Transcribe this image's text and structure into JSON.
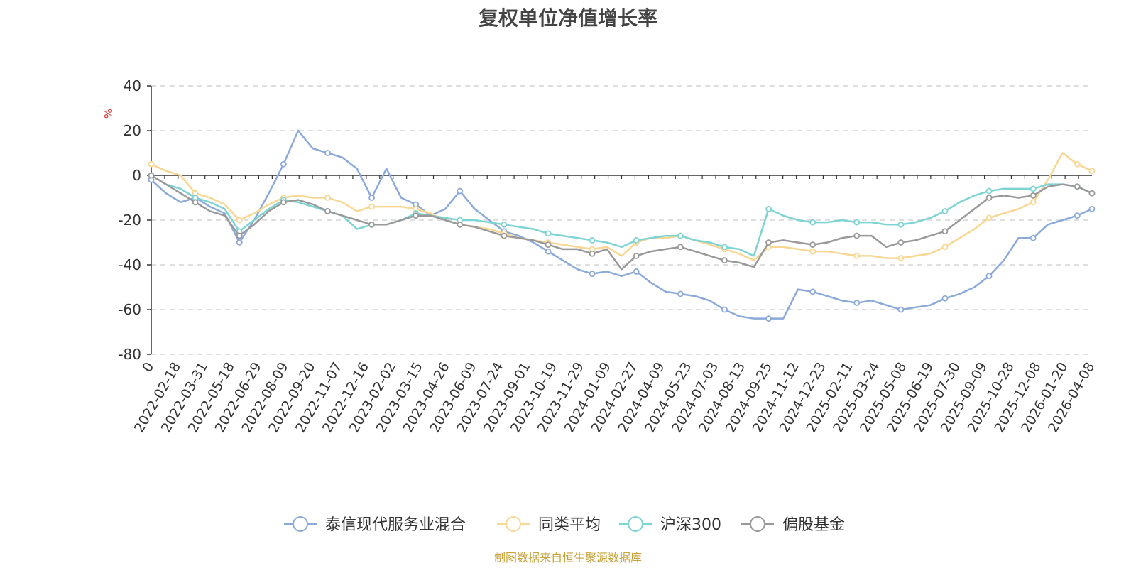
{
  "chart_data": {
    "type": "line",
    "title": "复权单位净值增长率",
    "ylabel": "%",
    "ylim": [
      -80,
      40
    ],
    "yticks": [
      40,
      20,
      0,
      -20,
      -40,
      -60,
      -80
    ],
    "xticks": [
      "0",
      "2022-02-18",
      "2022-03-31",
      "2022-05-18",
      "2022-06-29",
      "2022-08-09",
      "2022-09-20",
      "2022-11-07",
      "2022-12-16",
      "2023-02-02",
      "2023-03-15",
      "2023-04-26",
      "2023-06-09",
      "2023-07-24",
      "2023-09-01",
      "2023-10-19",
      "2023-11-29",
      "2024-01-09",
      "2024-02-27",
      "2024-04-09",
      "2024-05-23",
      "2024-07-03",
      "2024-08-13",
      "2024-09-25",
      "2024-11-12",
      "2024-12-23",
      "2025-02-11",
      "2025-03-24",
      "2025-05-08",
      "2025-06-19",
      "2025-07-30",
      "2025-09-09",
      "2025-10-28",
      "2025-12-08",
      "2026-01-20",
      "2026-04-08"
    ],
    "grid": true,
    "legend_position": "bottom",
    "series": [
      {
        "name": "泰信现代服务业混合",
        "color": "#8caad9",
        "values": [
          -2,
          -8,
          -12,
          -10,
          -14,
          -17,
          -30,
          -20,
          -8,
          5,
          20,
          12,
          10,
          8,
          3,
          -10,
          3,
          -10,
          -13,
          -18,
          -15,
          -7,
          -15,
          -20,
          -25,
          -27,
          -30,
          -34,
          -38,
          -42,
          -44,
          -43,
          -45,
          -43,
          -48,
          -52,
          -53,
          -54,
          -56,
          -60,
          -63,
          -64,
          -64,
          -64,
          -51,
          -52,
          -54,
          -56,
          -57,
          -56,
          -58,
          -60,
          -59,
          -58,
          -55,
          -53,
          -50,
          -45,
          -38,
          -28,
          -28,
          -22,
          -20,
          -18,
          -15
        ]
      },
      {
        "name": "同类平均",
        "color": "#f8d693",
        "values": [
          5,
          2,
          0,
          -8,
          -10,
          -13,
          -20,
          -17,
          -13,
          -10,
          -9,
          -10,
          -10,
          -12,
          -16,
          -14,
          -14,
          -14,
          -15,
          -17,
          -20,
          -22,
          -23,
          -24,
          -26,
          -28,
          -29,
          -30,
          -31,
          -32,
          -33,
          -32,
          -36,
          -30,
          -28,
          -28,
          -27,
          -29,
          -31,
          -33,
          -35,
          -38,
          -32,
          -32,
          -33,
          -34,
          -34,
          -35,
          -36,
          -36,
          -37,
          -37,
          -36,
          -35,
          -32,
          -28,
          -24,
          -19,
          -17,
          -15,
          -12,
          -2,
          10,
          5,
          2
        ]
      },
      {
        "name": "沪深300",
        "color": "#7ed3d3",
        "values": [
          0,
          -4,
          -6,
          -10,
          -12,
          -15,
          -25,
          -20,
          -15,
          -11,
          -12,
          -14,
          -16,
          -18,
          -24,
          -22,
          -22,
          -20,
          -17,
          -18,
          -19,
          -20,
          -20,
          -21,
          -22,
          -23,
          -24,
          -26,
          -27,
          -28,
          -29,
          -30,
          -32,
          -29,
          -28,
          -27,
          -27,
          -29,
          -30,
          -32,
          -33,
          -36,
          -15,
          -18,
          -20,
          -21,
          -21,
          -20,
          -21,
          -21,
          -22,
          -22,
          -21,
          -19,
          -16,
          -12,
          -9,
          -7,
          -6,
          -6,
          -6,
          -4,
          -4,
          -5,
          -8
        ]
      },
      {
        "name": "偏股基金",
        "color": "#999999",
        "values": [
          0,
          -4,
          -8,
          -12,
          -16,
          -18,
          -27,
          -22,
          -16,
          -12,
          -11,
          -13,
          -16,
          -18,
          -20,
          -22,
          -22,
          -20,
          -18,
          -18,
          -20,
          -22,
          -23,
          -25,
          -27,
          -28,
          -29,
          -31,
          -33,
          -33,
          -35,
          -33,
          -42,
          -36,
          -34,
          -33,
          -32,
          -34,
          -36,
          -38,
          -39,
          -41,
          -30,
          -29,
          -30,
          -31,
          -30,
          -28,
          -27,
          -27,
          -32,
          -30,
          -29,
          -27,
          -25,
          -20,
          -15,
          -10,
          -9,
          -10,
          -9,
          -5,
          -4,
          -5,
          -8
        ]
      }
    ]
  },
  "source_note": "制图数据来自恒生聚源数据库",
  "colors": {
    "axis": "#333333",
    "grid": "#cccccc",
    "unit": "#e03030",
    "source": "#c8a23a"
  }
}
